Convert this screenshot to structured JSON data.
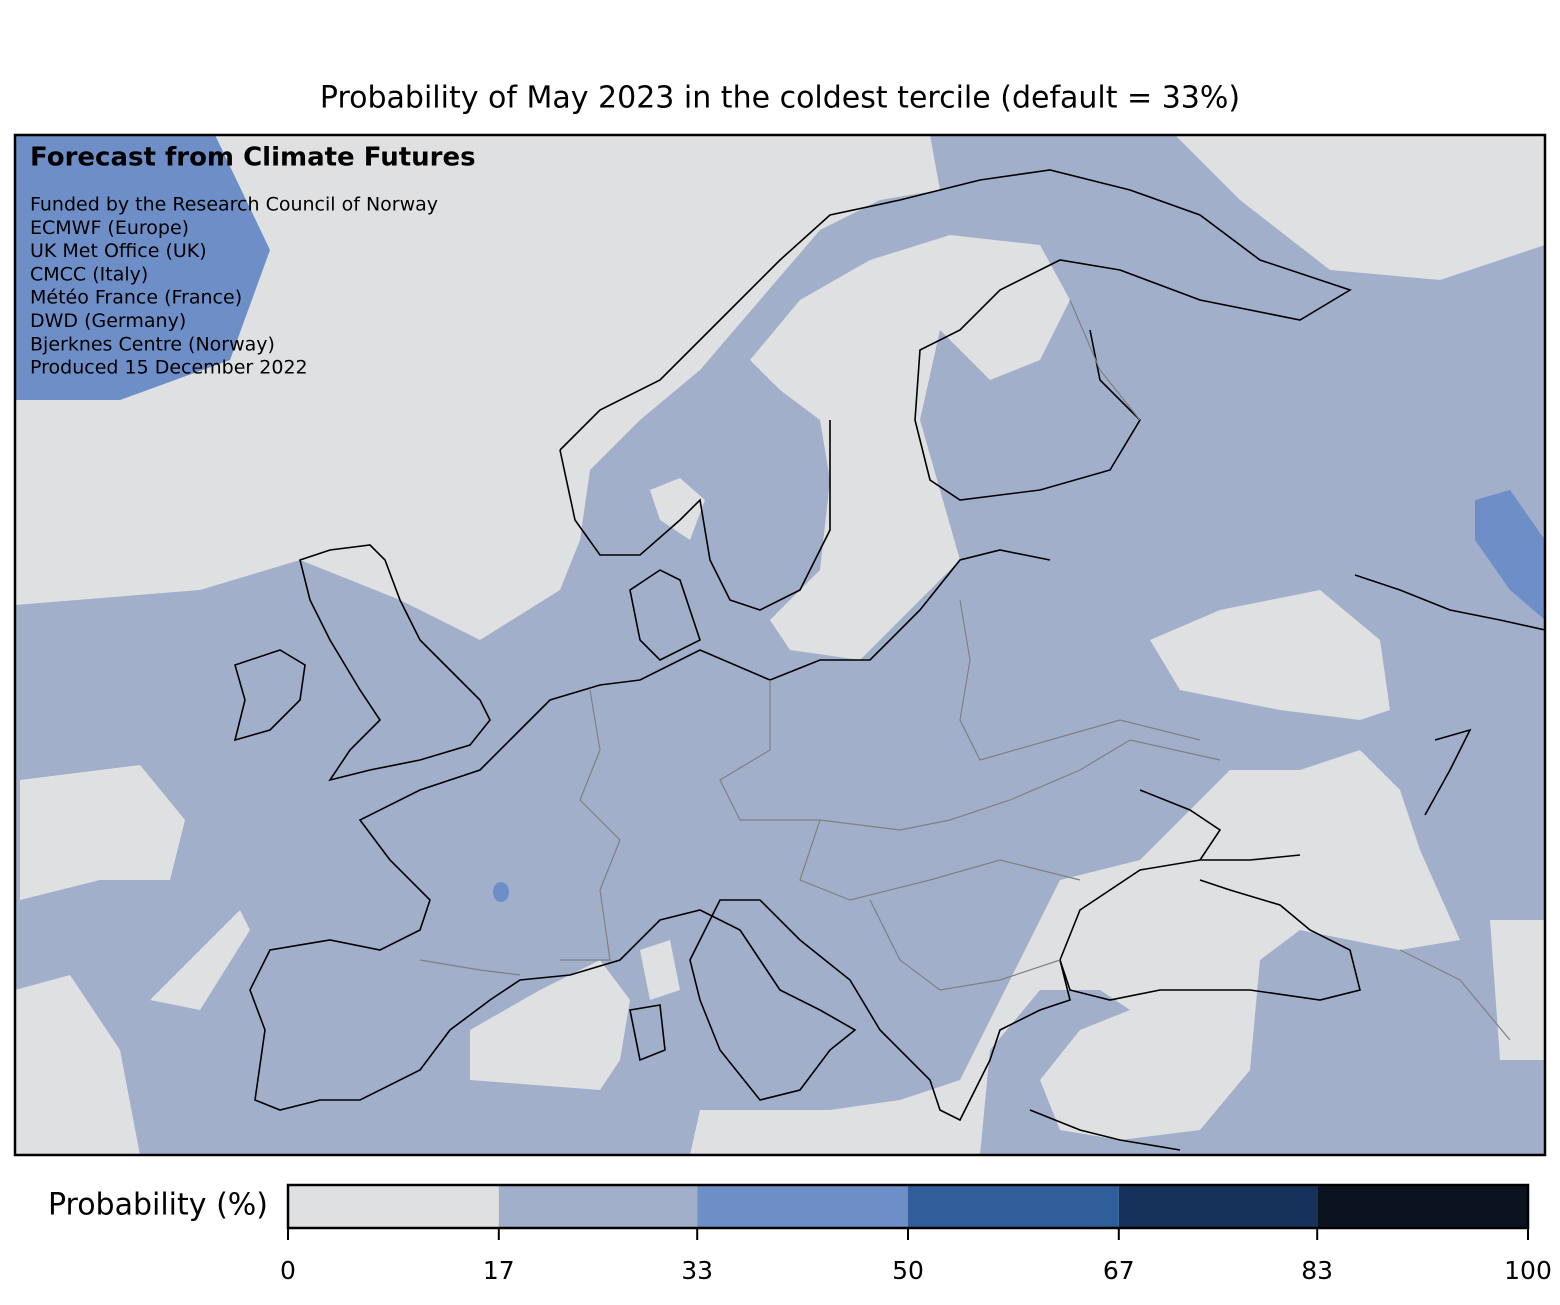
{
  "title": "Probability of May 2023 in the coldest tercile (default = 33%)",
  "annotation": {
    "heading": "Forecast from Climate Futures",
    "lines": [
      "Funded by the Research Council of Norway",
      "ECMWF (Europe)",
      "UK Met Office (UK)",
      "CMCC (Italy)",
      "Météo France (France)",
      "DWD (Germany)",
      "Bjerknes Centre (Norway)",
      "Produced 15 December 2022"
    ]
  },
  "colorbar": {
    "label": "Probability (%)",
    "lim": [
      0,
      100
    ],
    "ticks": [
      0,
      17,
      33,
      50,
      67,
      83,
      100
    ],
    "colors": [
      "#dfe0e2",
      "#a2afca",
      "#6e8ec8",
      "#2f5e9a",
      "#15335a",
      "#0b141e"
    ]
  }
}
